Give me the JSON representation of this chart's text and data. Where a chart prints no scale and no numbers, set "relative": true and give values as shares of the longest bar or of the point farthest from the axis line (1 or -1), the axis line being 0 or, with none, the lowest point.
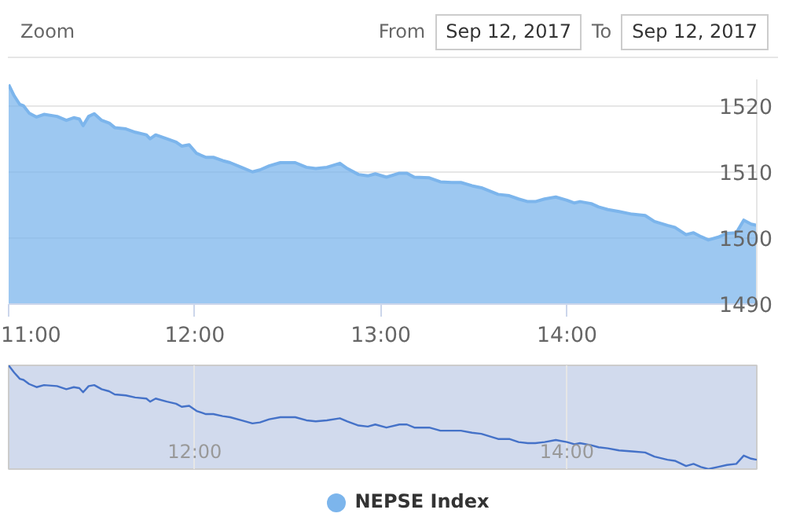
{
  "chart_data": [
    {
      "type": "area",
      "annotations": [
        "Zoom",
        "From",
        "Sep 12, 2017",
        "To",
        "Sep 12, 2017"
      ],
      "x": [
        11.0,
        11.03,
        11.06,
        11.08,
        11.11,
        11.15,
        11.19,
        11.26,
        11.31,
        11.35,
        11.38,
        11.4,
        11.43,
        11.46,
        11.5,
        11.54,
        11.57,
        11.63,
        11.68,
        11.74,
        11.76,
        11.79,
        11.85,
        11.9,
        11.93,
        11.97,
        12.01,
        12.06,
        12.1,
        12.15,
        12.19,
        12.25,
        12.31,
        12.35,
        12.4,
        12.46,
        12.54,
        12.6,
        12.65,
        12.71,
        12.78,
        12.82,
        12.88,
        12.93,
        12.97,
        13.03,
        13.1,
        13.14,
        13.18,
        13.26,
        13.32,
        13.38,
        13.43,
        13.49,
        13.54,
        13.63,
        13.69,
        13.74,
        13.79,
        13.83,
        13.88,
        13.94,
        14.0,
        14.04,
        14.07,
        14.13,
        14.17,
        14.22,
        14.28,
        14.35,
        14.42,
        14.47,
        14.54,
        14.58,
        14.64,
        14.68,
        14.72,
        14.76,
        14.81,
        14.86,
        14.91,
        14.95,
        14.99,
        15.02
      ],
      "series": [
        {
          "name": "NEPSE Index",
          "color": "#7cb5ec",
          "values": [
            1523.2,
            1521.5,
            1520.2,
            1520.0,
            1518.9,
            1518.3,
            1518.7,
            1518.4,
            1517.8,
            1518.2,
            1518.0,
            1517.0,
            1518.4,
            1518.8,
            1517.8,
            1517.4,
            1516.7,
            1516.5,
            1516.0,
            1515.6,
            1515.0,
            1515.6,
            1515.0,
            1514.5,
            1513.9,
            1514.1,
            1512.8,
            1512.2,
            1512.2,
            1511.7,
            1511.4,
            1510.7,
            1510.0,
            1510.3,
            1510.9,
            1511.4,
            1511.4,
            1510.7,
            1510.5,
            1510.7,
            1511.3,
            1510.5,
            1509.6,
            1509.4,
            1509.7,
            1509.2,
            1509.8,
            1509.8,
            1509.2,
            1509.1,
            1508.5,
            1508.4,
            1508.4,
            1507.9,
            1507.6,
            1506.6,
            1506.4,
            1505.9,
            1505.5,
            1505.5,
            1505.9,
            1506.2,
            1505.7,
            1505.3,
            1505.5,
            1505.2,
            1504.7,
            1504.3,
            1504.0,
            1503.6,
            1503.4,
            1502.5,
            1501.9,
            1501.6,
            1500.5,
            1500.8,
            1500.2,
            1499.7,
            1500.1,
            1500.7,
            1500.8,
            1502.7,
            1502.1,
            1501.9
          ]
        }
      ],
      "xlim": [
        11.0,
        15.02
      ],
      "xticks": [
        {
          "value": 11,
          "label": "11:00"
        },
        {
          "value": 12,
          "label": "12:00"
        },
        {
          "value": 13,
          "label": "13:00"
        },
        {
          "value": 14,
          "label": "14:00"
        }
      ],
      "ylim": [
        1490,
        1524
      ],
      "yticks": [
        1490,
        1500,
        1510,
        1520
      ],
      "grid": "y",
      "legend": "bottom"
    },
    {
      "type": "line",
      "x": [
        11.0,
        11.03,
        11.06,
        11.08,
        11.11,
        11.15,
        11.19,
        11.26,
        11.31,
        11.35,
        11.38,
        11.4,
        11.43,
        11.46,
        11.5,
        11.54,
        11.57,
        11.63,
        11.68,
        11.74,
        11.76,
        11.79,
        11.85,
        11.9,
        11.93,
        11.97,
        12.01,
        12.06,
        12.1,
        12.15,
        12.19,
        12.25,
        12.31,
        12.35,
        12.4,
        12.46,
        12.54,
        12.6,
        12.65,
        12.71,
        12.78,
        12.82,
        12.88,
        12.93,
        12.97,
        13.03,
        13.1,
        13.14,
        13.18,
        13.26,
        13.32,
        13.38,
        13.43,
        13.49,
        13.54,
        13.63,
        13.69,
        13.74,
        13.79,
        13.83,
        13.88,
        13.94,
        14.0,
        14.04,
        14.07,
        14.13,
        14.17,
        14.22,
        14.28,
        14.35,
        14.42,
        14.47,
        14.54,
        14.58,
        14.64,
        14.68,
        14.72,
        14.76,
        14.81,
        14.86,
        14.91,
        14.95,
        14.99,
        15.02
      ],
      "series": [
        {
          "color": "#4572c8",
          "values": [
            1.0,
            0.93,
            0.87,
            0.86,
            0.82,
            0.79,
            0.81,
            0.8,
            0.77,
            0.79,
            0.78,
            0.74,
            0.8,
            0.81,
            0.77,
            0.75,
            0.72,
            0.71,
            0.69,
            0.68,
            0.65,
            0.68,
            0.65,
            0.63,
            0.6,
            0.61,
            0.56,
            0.53,
            0.53,
            0.51,
            0.5,
            0.47,
            0.44,
            0.45,
            0.48,
            0.5,
            0.5,
            0.47,
            0.46,
            0.47,
            0.49,
            0.46,
            0.42,
            0.41,
            0.43,
            0.4,
            0.43,
            0.43,
            0.4,
            0.4,
            0.37,
            0.37,
            0.37,
            0.35,
            0.34,
            0.29,
            0.29,
            0.26,
            0.25,
            0.25,
            0.26,
            0.28,
            0.26,
            0.24,
            0.25,
            0.23,
            0.21,
            0.2,
            0.18,
            0.17,
            0.16,
            0.12,
            0.09,
            0.08,
            0.03,
            0.05,
            0.02,
            0.0,
            0.02,
            0.04,
            0.05,
            0.13,
            0.1,
            0.09
          ]
        }
      ],
      "xlim": [
        11.0,
        15.02
      ],
      "xticks": [
        {
          "value": 12,
          "label": "12:00"
        },
        {
          "value": 14,
          "label": "14:00"
        }
      ],
      "relative": true,
      "tick_labels": "x",
      "grid": "x"
    }
  ]
}
